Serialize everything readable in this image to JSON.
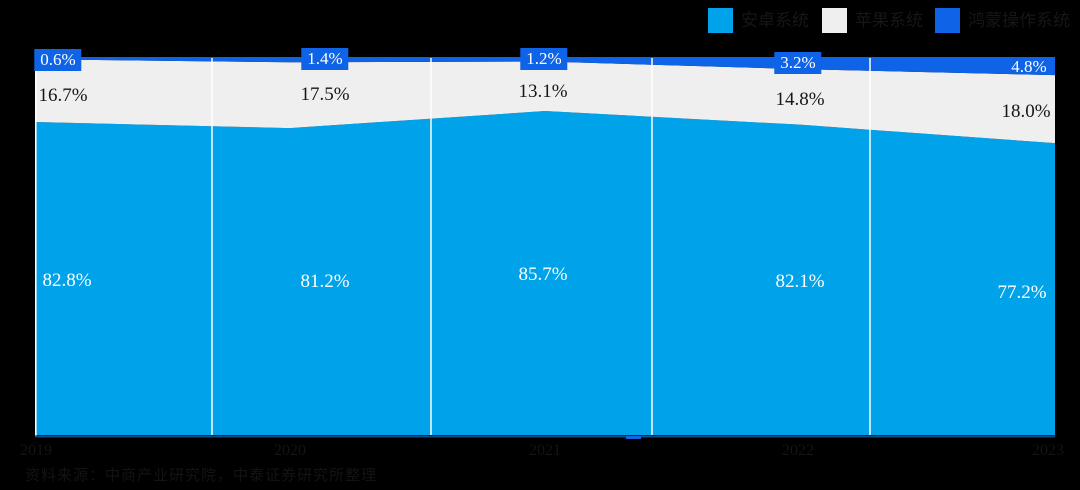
{
  "chart_data": {
    "type": "area",
    "variant": "100-percent-stacked",
    "title": "",
    "categories": [
      "2019",
      "2020",
      "2021",
      "2022",
      "2023"
    ],
    "series": [
      {
        "name": "安卓系统",
        "color": "#00A3EA",
        "values": [
          82.8,
          81.2,
          85.7,
          82.1,
          77.2
        ]
      },
      {
        "name": "苹果系统",
        "color": "#EFEFEF",
        "values": [
          16.7,
          17.5,
          13.1,
          14.8,
          18.0
        ]
      },
      {
        "name": "鸿蒙操作系统",
        "color": "#0E63E6",
        "values": [
          0.6,
          1.4,
          1.2,
          3.2,
          4.8
        ]
      }
    ],
    "ylim": [
      0,
      100
    ],
    "xlabel": "",
    "ylabel": "",
    "legend_position": "top-right",
    "gridlines": "vertical white category separators",
    "value_label_format": "0.0%",
    "background_color": "#000000",
    "axis_line_color": "#0A4C8C"
  },
  "source_note": "资料来源：中商产业研究院，中泰证券研究所整理"
}
